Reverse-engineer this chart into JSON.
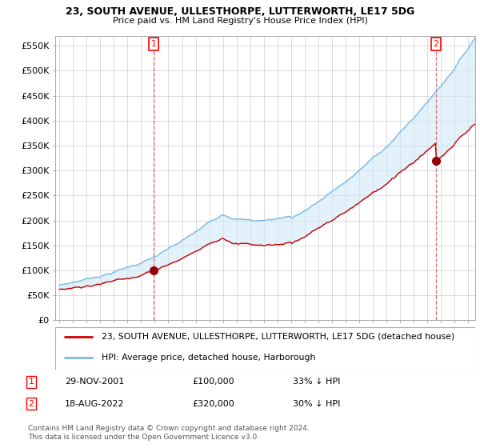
{
  "title": "23, SOUTH AVENUE, ULLESTHORPE, LUTTERWORTH, LE17 5DG",
  "subtitle": "Price paid vs. HM Land Registry's House Price Index (HPI)",
  "legend_line1": "23, SOUTH AVENUE, ULLESTHORPE, LUTTERWORTH, LE17 5DG (detached house)",
  "legend_line2": "HPI: Average price, detached house, Harborough",
  "annotation1_date": "29-NOV-2001",
  "annotation1_price": "£100,000",
  "annotation1_hpi": "33% ↓ HPI",
  "annotation2_date": "18-AUG-2022",
  "annotation2_price": "£320,000",
  "annotation2_hpi": "30% ↓ HPI",
  "footer": "Contains HM Land Registry data © Crown copyright and database right 2024.\nThis data is licensed under the Open Government Licence v3.0.",
  "hpi_color": "#7ab8e8",
  "hpi_fill_color": "#d0e8f8",
  "price_color": "#cc0000",
  "vline_color": "#e06060",
  "marker_color": "#990000",
  "ylim": [
    0,
    570000
  ],
  "yticks": [
    0,
    50000,
    100000,
    150000,
    200000,
    250000,
    300000,
    350000,
    400000,
    450000,
    500000,
    550000
  ],
  "xlim_start": 1994.7,
  "xlim_end": 2025.5,
  "purchase1_x": 2001.91,
  "purchase1_y": 100000,
  "purchase2_x": 2022.63,
  "purchase2_y": 320000
}
